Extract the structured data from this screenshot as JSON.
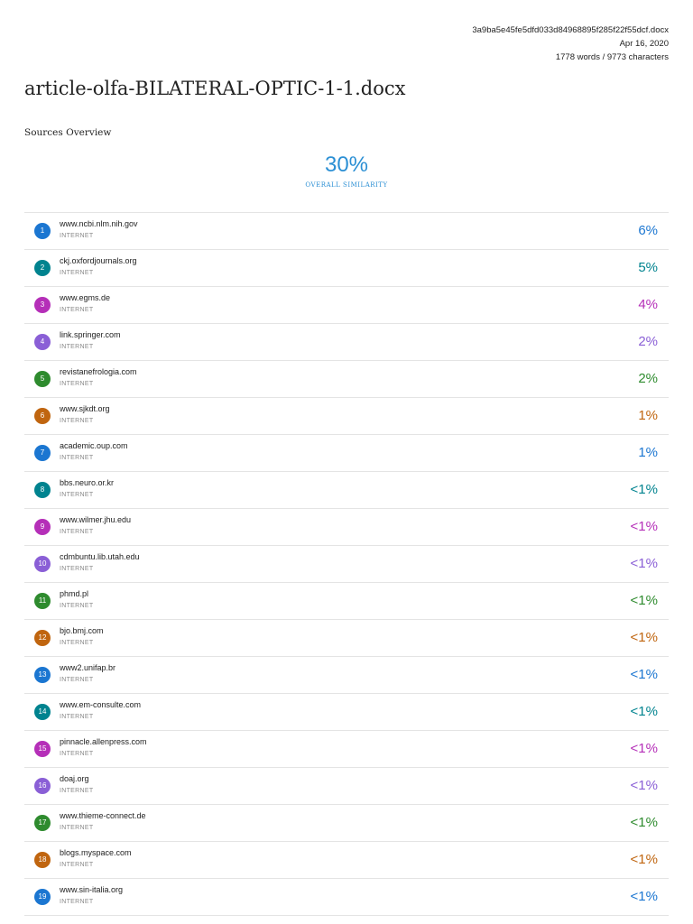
{
  "header": {
    "filename": "3a9ba5e45fe5dfd033d84968895f285f22f55dcf.docx",
    "date": "Apr 16, 2020",
    "counts": "1778 words / 9773 characters"
  },
  "title": "article-olfa-BILATERAL-OPTIC-1-1.docx",
  "section_label": "Sources Overview",
  "overall": {
    "value": "30%",
    "label": "OVERALL SIMILARITY"
  },
  "sources": [
    {
      "num": "1",
      "name": "www.ncbi.nlm.nih.gov",
      "type": "INTERNET",
      "pct": "6%",
      "color": "#1b76d1"
    },
    {
      "num": "2",
      "name": "ckj.oxfordjournals.org",
      "type": "INTERNET",
      "pct": "5%",
      "color": "#00838f"
    },
    {
      "num": "3",
      "name": "www.egms.de",
      "type": "INTERNET",
      "pct": "4%",
      "color": "#b52fb8"
    },
    {
      "num": "4",
      "name": "link.springer.com",
      "type": "INTERNET",
      "pct": "2%",
      "color": "#8a5fd6"
    },
    {
      "num": "5",
      "name": "revistanefrologia.com",
      "type": "INTERNET",
      "pct": "2%",
      "color": "#2e8b2e"
    },
    {
      "num": "6",
      "name": "www.sjkdt.org",
      "type": "INTERNET",
      "pct": "1%",
      "color": "#c0650f"
    },
    {
      "num": "7",
      "name": "academic.oup.com",
      "type": "INTERNET",
      "pct": "1%",
      "color": "#1b76d1"
    },
    {
      "num": "8",
      "name": "bbs.neuro.or.kr",
      "type": "INTERNET",
      "pct": "<1%",
      "color": "#00838f"
    },
    {
      "num": "9",
      "name": "www.wilmer.jhu.edu",
      "type": "INTERNET",
      "pct": "<1%",
      "color": "#b52fb8"
    },
    {
      "num": "10",
      "name": "cdmbuntu.lib.utah.edu",
      "type": "INTERNET",
      "pct": "<1%",
      "color": "#8a5fd6"
    },
    {
      "num": "11",
      "name": "phmd.pl",
      "type": "INTERNET",
      "pct": "<1%",
      "color": "#2e8b2e"
    },
    {
      "num": "12",
      "name": "bjo.bmj.com",
      "type": "INTERNET",
      "pct": "<1%",
      "color": "#c0650f"
    },
    {
      "num": "13",
      "name": "www2.unifap.br",
      "type": "INTERNET",
      "pct": "<1%",
      "color": "#1b76d1"
    },
    {
      "num": "14",
      "name": "www.em-consulte.com",
      "type": "INTERNET",
      "pct": "<1%",
      "color": "#00838f"
    },
    {
      "num": "15",
      "name": "pinnacle.allenpress.com",
      "type": "INTERNET",
      "pct": "<1%",
      "color": "#b52fb8"
    },
    {
      "num": "16",
      "name": "doaj.org",
      "type": "INTERNET",
      "pct": "<1%",
      "color": "#8a5fd6"
    },
    {
      "num": "17",
      "name": "www.thieme-connect.de",
      "type": "INTERNET",
      "pct": "<1%",
      "color": "#2e8b2e"
    },
    {
      "num": "18",
      "name": "blogs.myspace.com",
      "type": "INTERNET",
      "pct": "<1%",
      "color": "#c0650f"
    },
    {
      "num": "19",
      "name": "www.sin-italia.org",
      "type": "INTERNET",
      "pct": "<1%",
      "color": "#1b76d1"
    }
  ]
}
